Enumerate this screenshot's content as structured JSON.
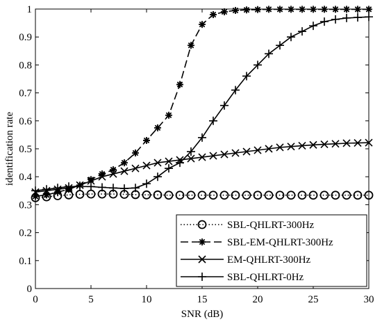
{
  "chart_data": {
    "type": "line",
    "title": "",
    "xlabel": "SNR (dB)",
    "ylabel": "identification rate",
    "xlim": [
      0,
      30
    ],
    "ylim": [
      0,
      1
    ],
    "xticks": [
      0,
      5,
      10,
      15,
      20,
      25,
      30
    ],
    "xtick_labels": [
      "0",
      "5",
      "10",
      "15",
      "20",
      "25",
      "30"
    ],
    "yticks": [
      0,
      0.1,
      0.2,
      0.3,
      0.4,
      0.5,
      0.6,
      0.7,
      0.8,
      0.9,
      1
    ],
    "ytick_labels": [
      "0",
      "0.1",
      "0.2",
      "0.3",
      "0.4",
      "0.5",
      "0.6",
      "0.7",
      "0.8",
      "0.9",
      "1"
    ],
    "grid": false,
    "legend_position": "bottom-right",
    "x": [
      0,
      1,
      2,
      3,
      4,
      5,
      6,
      7,
      8,
      9,
      10,
      11,
      12,
      13,
      14,
      15,
      16,
      17,
      18,
      19,
      20,
      21,
      22,
      23,
      24,
      25,
      26,
      27,
      28,
      29,
      30
    ],
    "series": [
      {
        "name": "SBL-QHLRT-300Hz",
        "line_style": "dotted",
        "marker": "circle",
        "color": "#000000",
        "values": [
          0.325,
          0.328,
          0.332,
          0.335,
          0.337,
          0.338,
          0.338,
          0.338,
          0.337,
          0.336,
          0.335,
          0.335,
          0.334,
          0.334,
          0.334,
          0.334,
          0.334,
          0.334,
          0.334,
          0.334,
          0.334,
          0.334,
          0.334,
          0.334,
          0.334,
          0.334,
          0.334,
          0.334,
          0.334,
          0.334,
          0.334
        ]
      },
      {
        "name": "SBL-EM-QHLRT-300Hz",
        "line_style": "dashed",
        "marker": "asterisk",
        "color": "#000000",
        "values": [
          0.33,
          0.335,
          0.345,
          0.355,
          0.37,
          0.39,
          0.41,
          0.425,
          0.45,
          0.485,
          0.53,
          0.575,
          0.62,
          0.73,
          0.87,
          0.945,
          0.98,
          0.99,
          0.995,
          0.997,
          0.998,
          0.999,
          0.999,
          0.999,
          0.999,
          0.999,
          0.999,
          0.999,
          0.999,
          0.999,
          0.999
        ]
      },
      {
        "name": "EM-QHLRT-300Hz",
        "line_style": "solid",
        "marker": "x",
        "color": "#000000",
        "values": [
          0.345,
          0.35,
          0.355,
          0.36,
          0.37,
          0.385,
          0.4,
          0.41,
          0.42,
          0.43,
          0.44,
          0.45,
          0.455,
          0.46,
          0.465,
          0.47,
          0.475,
          0.48,
          0.485,
          0.49,
          0.495,
          0.5,
          0.505,
          0.508,
          0.511,
          0.514,
          0.516,
          0.518,
          0.52,
          0.521,
          0.522
        ]
      },
      {
        "name": "SBL-QHLRT-0Hz",
        "line_style": "solid",
        "marker": "plus",
        "color": "#000000",
        "values": [
          0.35,
          0.355,
          0.36,
          0.365,
          0.365,
          0.365,
          0.362,
          0.36,
          0.358,
          0.36,
          0.375,
          0.4,
          0.43,
          0.45,
          0.49,
          0.54,
          0.6,
          0.655,
          0.71,
          0.76,
          0.8,
          0.84,
          0.87,
          0.9,
          0.92,
          0.94,
          0.955,
          0.963,
          0.968,
          0.97,
          0.972
        ]
      }
    ]
  }
}
